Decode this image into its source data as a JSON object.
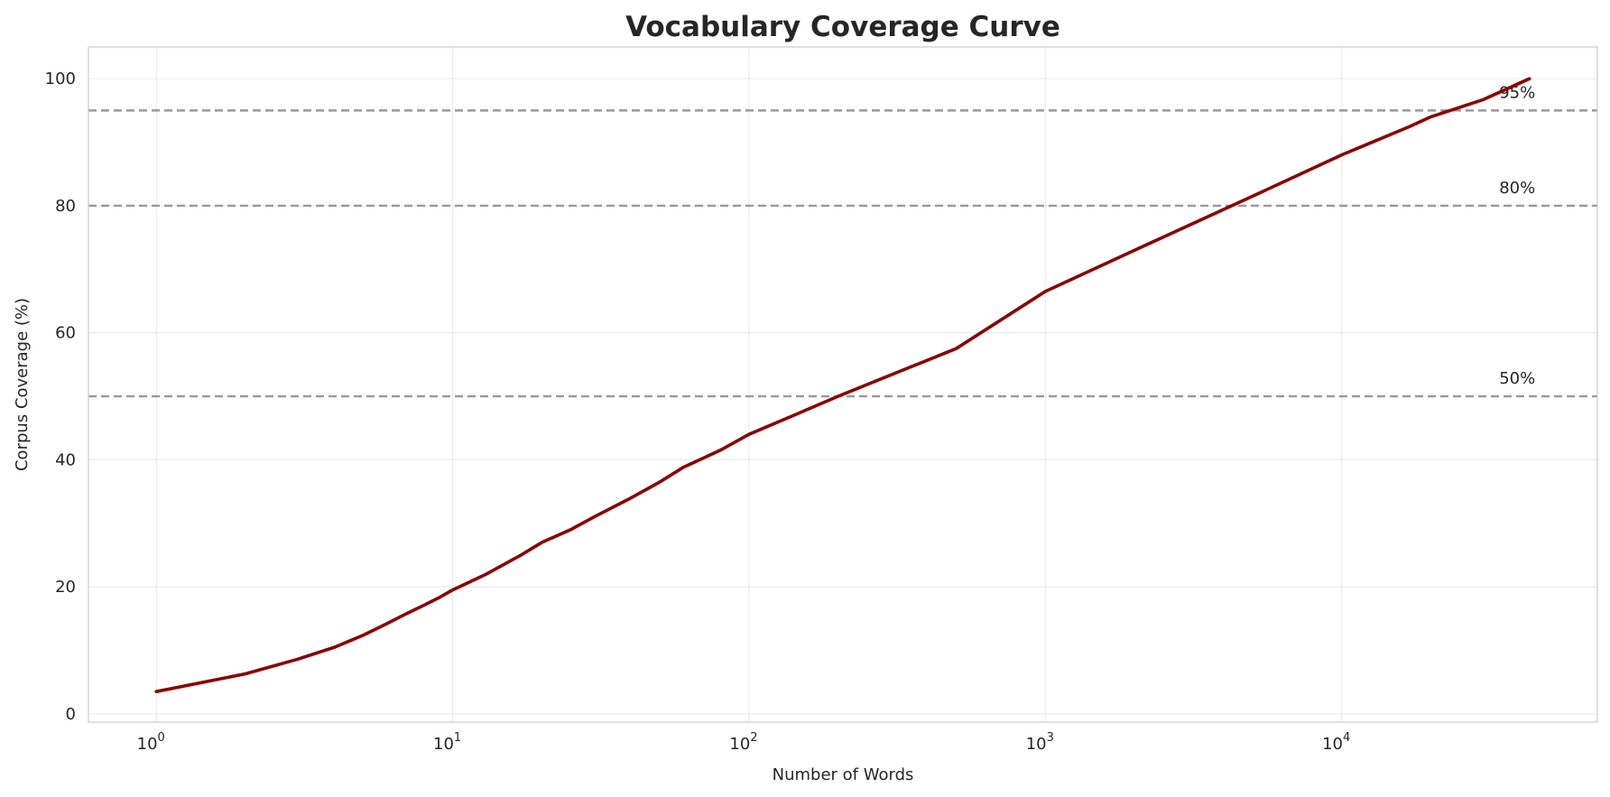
{
  "chart_data": {
    "type": "line",
    "title": "Vocabulary Coverage Curve",
    "xlabel": "Number of Words",
    "ylabel": "Corpus Coverage (%)",
    "xscale": "log",
    "xlim": [
      0.59,
      72900
    ],
    "ylim": [
      -1.3,
      105
    ],
    "grid": true,
    "x_ticks": [
      1,
      10,
      100,
      1000,
      10000
    ],
    "x_tick_labels": [
      "10^0",
      "10^1",
      "10^2",
      "10^3",
      "10^4"
    ],
    "y_ticks": [
      0,
      20,
      40,
      60,
      80,
      100
    ],
    "y_tick_labels": [
      "0",
      "20",
      "40",
      "60",
      "80",
      "100"
    ],
    "series": [
      {
        "color": "#8b0000",
        "x": [
          1,
          2,
          3,
          4,
          5,
          6,
          7,
          8,
          9,
          10,
          13,
          17,
          20,
          25,
          30,
          40,
          50,
          60,
          80,
          100,
          150,
          200,
          500,
          1000,
          2000,
          5000,
          10000,
          17000,
          20000,
          30000,
          43000
        ],
        "y": [
          3.5,
          6.3,
          8.6,
          10.5,
          12.4,
          14.2,
          15.8,
          17.1,
          18.3,
          19.5,
          22,
          25,
          27,
          29,
          31,
          34,
          36.5,
          38.8,
          41.5,
          44,
          47.5,
          50,
          57.5,
          66.5,
          73,
          81.5,
          88,
          92.5,
          94,
          96.7,
          100
        ]
      }
    ],
    "reference_lines": [
      {
        "y": 95,
        "label": "95%",
        "color": "#999999",
        "style": "dashed"
      },
      {
        "y": 80,
        "label": "80%",
        "color": "#999999",
        "style": "dashed"
      },
      {
        "y": 50,
        "label": "50%",
        "color": "#999999",
        "style": "dashed"
      }
    ],
    "annotation_x": 34000
  }
}
